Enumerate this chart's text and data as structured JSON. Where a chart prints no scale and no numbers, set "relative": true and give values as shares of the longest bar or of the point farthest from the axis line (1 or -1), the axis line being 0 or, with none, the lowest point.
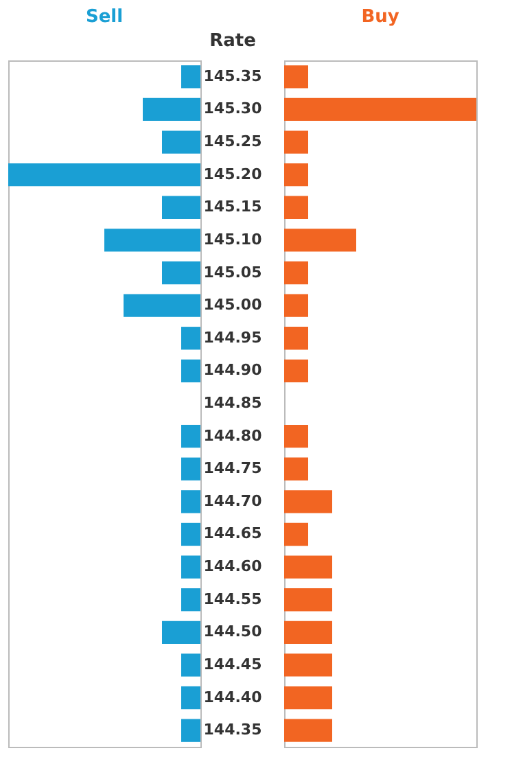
{
  "chart_data": [
    {
      "type": "bar",
      "orientation": "horizontal",
      "relative": true,
      "title": "Sell",
      "tick_labels": false,
      "categories": [
        "145.35",
        "145.30",
        "145.25",
        "145.20",
        "145.15",
        "145.10",
        "145.05",
        "145.00",
        "144.95",
        "144.90",
        "144.85",
        "144.80",
        "144.75",
        "144.70",
        "144.65",
        "144.60",
        "144.55",
        "144.50",
        "144.45",
        "144.40",
        "144.35"
      ],
      "series": [
        {
          "color": "#1a9fd4",
          "values": [
            0.1,
            0.3,
            0.2,
            1.0,
            0.2,
            0.5,
            0.2,
            0.4,
            0.1,
            0.1,
            0,
            0.1,
            0.1,
            0.1,
            0.1,
            0.1,
            0.1,
            0.2,
            0.1,
            0.1,
            0.1
          ]
        }
      ]
    },
    {
      "type": "bar",
      "orientation": "horizontal",
      "relative": true,
      "title": "Buy",
      "ylabel": "Rate",
      "categories": [
        "145.35",
        "145.30",
        "145.25",
        "145.20",
        "145.15",
        "145.10",
        "145.05",
        "145.00",
        "144.95",
        "144.90",
        "144.85",
        "144.80",
        "144.75",
        "144.70",
        "144.65",
        "144.60",
        "144.55",
        "144.50",
        "144.45",
        "144.40",
        "144.35"
      ],
      "series": [
        {
          "color": "#f26522",
          "values": [
            0.125,
            1.0,
            0.125,
            0.125,
            0.125,
            0.375,
            0.125,
            0.125,
            0.125,
            0.125,
            0,
            0.125,
            0.125,
            0.25,
            0.125,
            0.25,
            0.25,
            0.25,
            0.25,
            0.25,
            0.25
          ]
        }
      ]
    }
  ]
}
